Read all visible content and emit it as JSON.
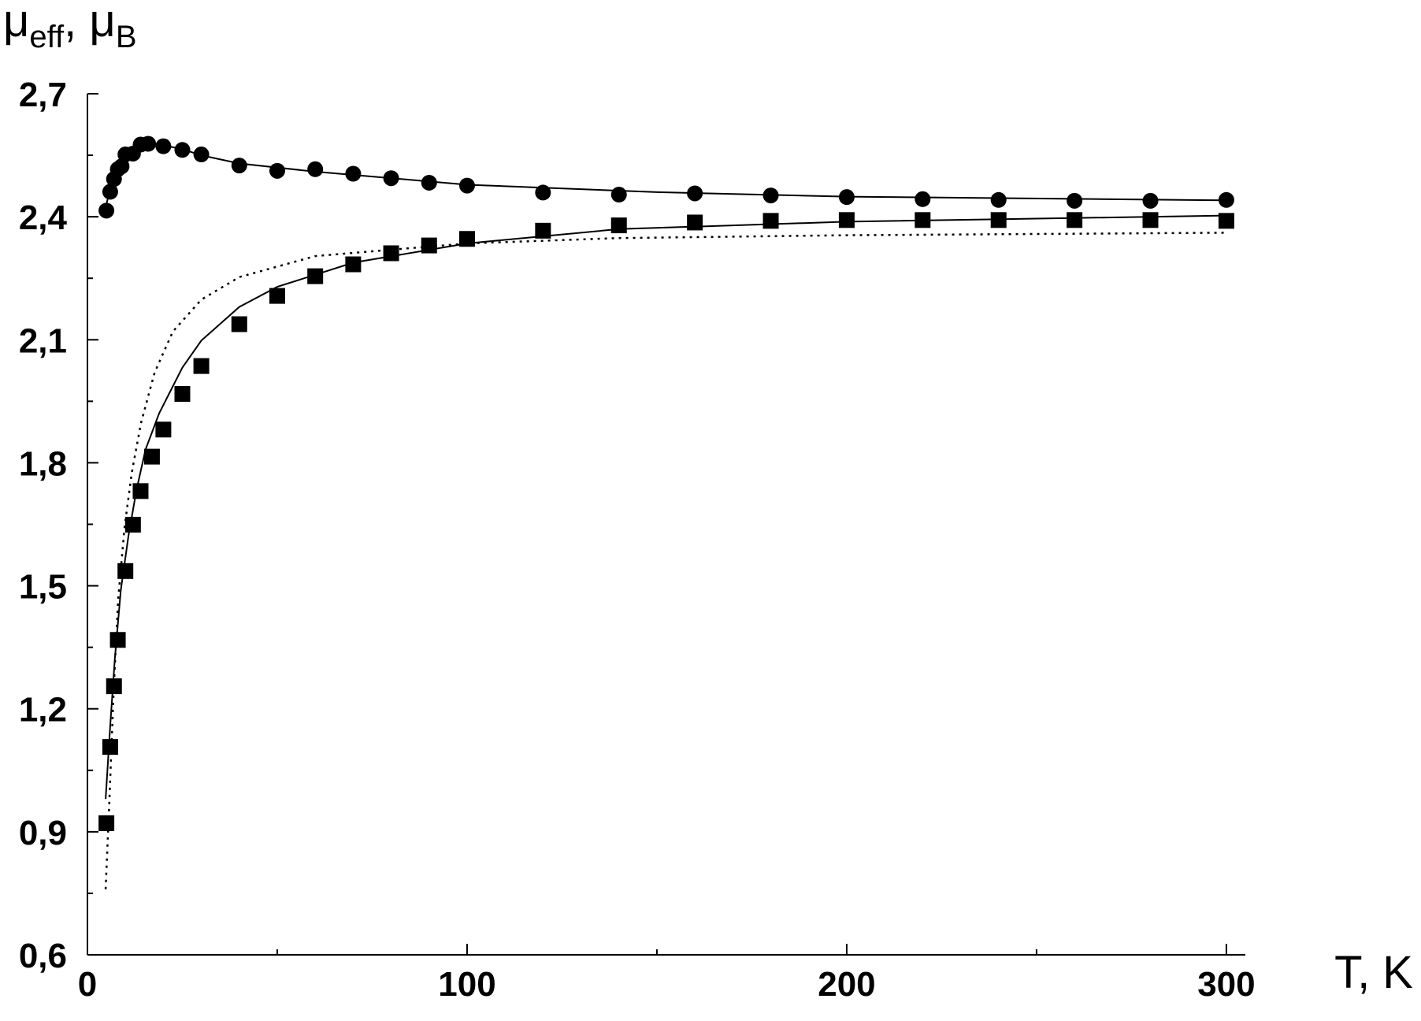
{
  "chart_data": {
    "type": "scatter",
    "ylabel": [
      "μ",
      "eff",
      ", μ",
      "B"
    ],
    "xlabel": "T, K",
    "xlim": [
      0,
      305
    ],
    "ylim": [
      0.6,
      2.7
    ],
    "xticks": [
      0,
      100,
      200,
      300
    ],
    "xminor": [
      50,
      150,
      250
    ],
    "yticks": [
      {
        "value": 0.6,
        "label": "0,6"
      },
      {
        "value": 0.9,
        "label": "0,9"
      },
      {
        "value": 1.2,
        "label": "1,2"
      },
      {
        "value": 1.5,
        "label": "1,5"
      },
      {
        "value": 1.8,
        "label": "1,8"
      },
      {
        "value": 2.1,
        "label": "2,1"
      },
      {
        "value": 2.4,
        "label": "2,4"
      },
      {
        "value": 2.7,
        "label": "2,7"
      }
    ],
    "yminor": [
      0.75,
      1.05,
      1.35,
      1.65,
      1.95,
      2.25,
      2.55
    ],
    "series": [
      {
        "mode": "markers",
        "marker": "circle",
        "color": "#000000",
        "x": [
          5,
          6,
          7,
          8,
          9,
          10,
          12,
          14,
          16,
          20,
          25,
          30,
          40,
          50,
          60,
          70,
          80,
          90,
          100,
          120,
          140,
          160,
          180,
          200,
          220,
          240,
          260,
          280,
          300
        ],
        "values": [
          2.415,
          2.461,
          2.492,
          2.516,
          2.523,
          2.552,
          2.554,
          2.576,
          2.578,
          2.572,
          2.563,
          2.552,
          2.525,
          2.512,
          2.516,
          2.505,
          2.494,
          2.483,
          2.476,
          2.459,
          2.454,
          2.457,
          2.452,
          2.448,
          2.443,
          2.441,
          2.439,
          2.439,
          2.441
        ]
      },
      {
        "mode": "line",
        "dash": "solid",
        "color": "#000000",
        "x": [
          5,
          6,
          8,
          10,
          14,
          18,
          25,
          30,
          40,
          60,
          100,
          150,
          200,
          300
        ],
        "values": [
          2.43,
          2.47,
          2.52,
          2.55,
          2.575,
          2.578,
          2.565,
          2.55,
          2.53,
          2.51,
          2.478,
          2.46,
          2.449,
          2.44
        ]
      },
      {
        "mode": "markers",
        "marker": "square",
        "color": "#000000",
        "x": [
          5,
          6,
          7,
          8,
          10,
          12,
          14,
          17,
          20,
          25,
          30,
          40,
          50,
          60,
          70,
          80,
          90,
          100,
          120,
          140,
          160,
          180,
          200,
          220,
          240,
          260,
          280,
          300
        ],
        "values": [
          0.921,
          1.107,
          1.255,
          1.368,
          1.536,
          1.649,
          1.731,
          1.815,
          1.881,
          1.968,
          2.036,
          2.138,
          2.207,
          2.255,
          2.284,
          2.311,
          2.33,
          2.346,
          2.366,
          2.379,
          2.386,
          2.39,
          2.392,
          2.392,
          2.392,
          2.392,
          2.392,
          2.39
        ]
      },
      {
        "mode": "line",
        "dash": "solid",
        "color": "#000000",
        "x": [
          4.8,
          6,
          7.2,
          8.8,
          10.8,
          12.9,
          15.3,
          18.9,
          25,
          30,
          40,
          50,
          70,
          100,
          140,
          200,
          300
        ],
        "values": [
          0.98,
          1.158,
          1.32,
          1.49,
          1.622,
          1.733,
          1.832,
          1.921,
          2.032,
          2.098,
          2.18,
          2.229,
          2.288,
          2.335,
          2.37,
          2.388,
          2.403
        ]
      },
      {
        "mode": "line",
        "dash": "dotted",
        "color": "#000000",
        "x": [
          4.8,
          5.7,
          6.9,
          8.1,
          9.8,
          11.7,
          14.1,
          17.7,
          22.5,
          30,
          40,
          60,
          100,
          140,
          200,
          300
        ],
        "values": [
          0.76,
          0.958,
          1.246,
          1.467,
          1.644,
          1.777,
          1.897,
          2.02,
          2.12,
          2.198,
          2.253,
          2.304,
          2.335,
          2.348,
          2.355,
          2.361
        ]
      }
    ]
  }
}
